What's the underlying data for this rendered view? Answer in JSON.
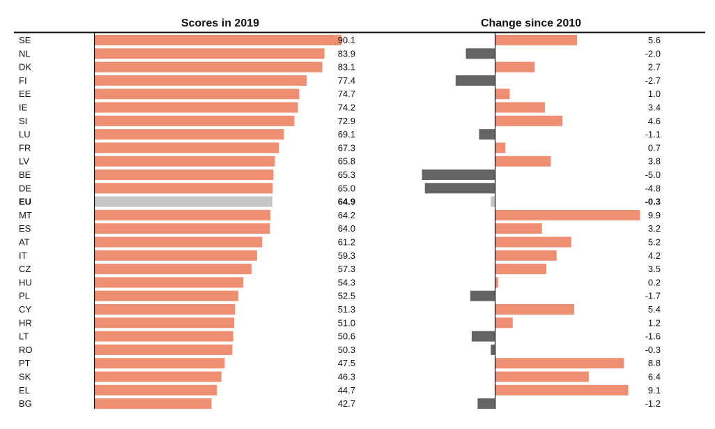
{
  "colors": {
    "bar": "#ee8e72",
    "bar_eu": "#c6c6c6",
    "negative": "#646464",
    "axis": "#111111"
  },
  "chart_data": [
    {
      "type": "bar",
      "orientation": "horizontal",
      "title": "Scores in 2019",
      "xlim": [
        0,
        100
      ],
      "categories": [
        "SE",
        "NL",
        "DK",
        "FI",
        "EE",
        "IE",
        "SI",
        "LU",
        "FR",
        "LV",
        "BE",
        "DE",
        "EU",
        "MT",
        "ES",
        "AT",
        "IT",
        "CZ",
        "HU",
        "PL",
        "CY",
        "HR",
        "LT",
        "RO",
        "PT",
        "SK",
        "EL",
        "BG"
      ],
      "values": [
        90.1,
        83.9,
        83.1,
        77.4,
        74.7,
        74.2,
        72.9,
        69.1,
        67.3,
        65.8,
        65.3,
        65.0,
        64.9,
        64.2,
        64.0,
        61.2,
        59.3,
        57.3,
        54.3,
        52.5,
        51.3,
        51.0,
        50.6,
        50.3,
        47.5,
        46.3,
        44.7,
        42.7
      ],
      "labels": [
        "90.1",
        "83.9",
        "83.1",
        "77.4",
        "74.7",
        "74.2",
        "72.9",
        "69.1",
        "67.3",
        "65.8",
        "65.3",
        "65.0",
        "64.9",
        "64.2",
        "64.0",
        "61.2",
        "59.3",
        "57.3",
        "54.3",
        "52.5",
        "51.3",
        "51.0",
        "50.6",
        "50.3",
        "47.5",
        "46.3",
        "44.7",
        "42.7"
      ],
      "highlight": "EU"
    },
    {
      "type": "bar",
      "orientation": "horizontal",
      "title": "Change since 2010",
      "categories": [
        "SE",
        "NL",
        "DK",
        "FI",
        "EE",
        "IE",
        "SI",
        "LU",
        "FR",
        "LV",
        "BE",
        "DE",
        "EU",
        "MT",
        "ES",
        "AT",
        "IT",
        "CZ",
        "HU",
        "PL",
        "CY",
        "HR",
        "LT",
        "RO",
        "PT",
        "SK",
        "EL",
        "BG"
      ],
      "values": [
        5.6,
        -2.0,
        2.7,
        -2.7,
        1.0,
        3.4,
        4.6,
        -1.1,
        0.7,
        3.8,
        -5.0,
        -4.8,
        -0.3,
        9.9,
        3.2,
        5.2,
        4.2,
        3.5,
        0.2,
        -1.7,
        5.4,
        1.2,
        -1.6,
        -0.3,
        8.8,
        6.4,
        9.1,
        -1.2
      ],
      "labels": [
        "5.6",
        "-2.0",
        "2.7",
        "-2.7",
        "1.0",
        "3.4",
        "4.6",
        "-1.1",
        "0.7",
        "3.8",
        "-5.0",
        "-4.8",
        "-0.3",
        "9.9",
        "3.2",
        "5.2",
        "4.2",
        "3.5",
        "0.2",
        "-1.7",
        "5.4",
        "1.2",
        "-1.6",
        "-0.3",
        "8.8",
        "6.4",
        "9.1",
        "-1.2"
      ],
      "highlight": "EU"
    }
  ]
}
